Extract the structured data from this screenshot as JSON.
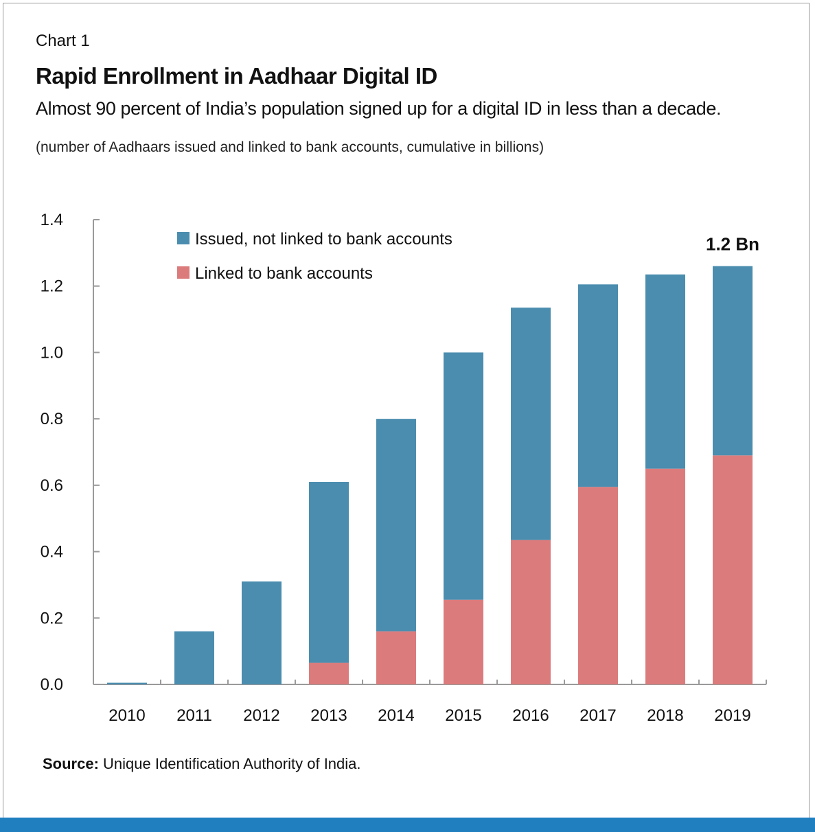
{
  "header": {
    "chart_label": "Chart 1",
    "title": "Rapid Enrollment in Aadhaar Digital ID",
    "subtitle": "Almost 90 percent of India’s population signed up for a digital ID in less than a decade.",
    "units_note": "(number of Aadhaars issued and linked to bank accounts, cumulative in billions)"
  },
  "footer": {
    "source_label": "Source:",
    "source_text": "Unique Identification Authority of India."
  },
  "colors": {
    "issued_not_linked": "#4a8daf",
    "linked": "#dc7b7c",
    "bottom_bar": "#1f7fbf",
    "axis": "#9a9a9a"
  },
  "chart_data": {
    "type": "bar",
    "stacked": true,
    "categories": [
      "2010",
      "2011",
      "2012",
      "2013",
      "2014",
      "2015",
      "2016",
      "2017",
      "2018",
      "2019"
    ],
    "series": [
      {
        "name": "Linked to bank accounts",
        "values": [
          0.0,
          0.0,
          0.0,
          0.065,
          0.16,
          0.255,
          0.435,
          0.595,
          0.65,
          0.69
        ]
      },
      {
        "name": "Issued, not linked to bank accounts",
        "values": [
          0.005,
          0.16,
          0.31,
          0.545,
          0.64,
          0.745,
          0.7,
          0.61,
          0.585,
          0.57
        ]
      }
    ],
    "yticks": [
      "0.0",
      "0.2",
      "0.4",
      "0.6",
      "0.8",
      "1.0",
      "1.2",
      "1.4"
    ],
    "ylim": [
      0,
      1.4
    ],
    "annotation": "1.2 Bn",
    "legend_position": "top-left",
    "grid": false
  }
}
